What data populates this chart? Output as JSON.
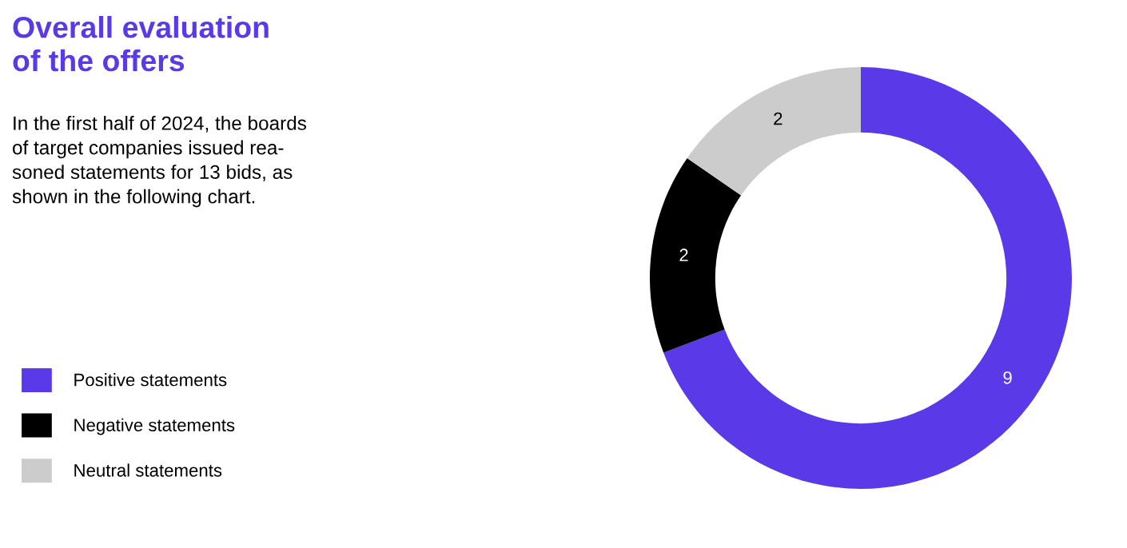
{
  "chart_data": {
    "type": "donut",
    "title": "Overall evaluation\nof the offers",
    "subtitle": "In the first half of 2024, the boards\nof target companies issued rea-\nsoned statements for 13 bids, as\nshown in the following chart.",
    "categories": [
      "Positive statements",
      "Negative statements",
      "Neutral statements"
    ],
    "values": [
      9,
      2,
      2
    ],
    "colors": [
      "#5a3ae8",
      "#000000",
      "#cccccc"
    ],
    "data_labels": true,
    "legend": "bottom left"
  }
}
